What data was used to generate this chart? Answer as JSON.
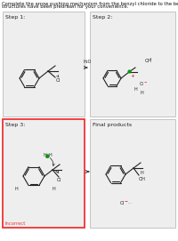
{
  "title_line1": "Complete the arrow pushing mechanism from the benzyl chloride to the benzyl alcohol by adding missing curved arrows. The",
  "title_line2": "structures have been predrawn for your convenience.",
  "step1_label": "Step 1:",
  "step2_label": "Step 2:",
  "step3_label": "Step 3:",
  "final_label": "Final products",
  "incorrect_label": "Incorrect",
  "h2o_label": "H₂O",
  "bg_white": "#ffffff",
  "box_fill": "#eeeeee",
  "box_edge": "#bbbbbb",
  "step3_edge": "#ee3333",
  "line_color": "#222222",
  "text_color": "#111111",
  "red_color": "#cc0000",
  "green_color": "#009900",
  "gray_color": "#888888",
  "title_fs": 3.8,
  "label_fs": 4.5,
  "mol_lw": 0.8,
  "figsize": [
    2.0,
    2.71
  ],
  "dpi": 100
}
